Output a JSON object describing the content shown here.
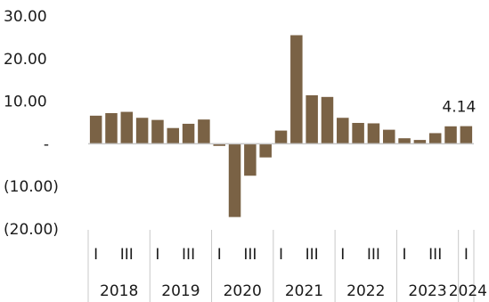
{
  "chart_data": {
    "type": "bar",
    "title": "",
    "xlabel": "",
    "ylabel": "",
    "ylim": [
      -20,
      30
    ],
    "y_ticks": [
      {
        "value": 30,
        "label": "30.00"
      },
      {
        "value": 20,
        "label": "20.00"
      },
      {
        "value": 10,
        "label": "10.00"
      },
      {
        "value": 0,
        "label": "-"
      },
      {
        "value": -10,
        "label": "(10.00)"
      },
      {
        "value": -20,
        "label": "(20.00)"
      }
    ],
    "grid": false,
    "bar_color": "#7a6245",
    "years": [
      "2018",
      "2019",
      "2020",
      "2021",
      "2022",
      "2023",
      "2024"
    ],
    "quarter_labels": [
      "I",
      "III"
    ],
    "series": [
      {
        "values": [
          6.6,
          7.2,
          7.5,
          6.1,
          5.6,
          3.7,
          4.7,
          5.7,
          -0.5,
          -17.2,
          -7.5,
          -3.2,
          3.1,
          25.5,
          11.4,
          11.0,
          6.1,
          4.9,
          4.8,
          3.3,
          1.3,
          0.9,
          2.5,
          4.1,
          4.14
        ]
      }
    ],
    "annotations": [
      {
        "index": 24,
        "text": "4.14"
      }
    ]
  }
}
